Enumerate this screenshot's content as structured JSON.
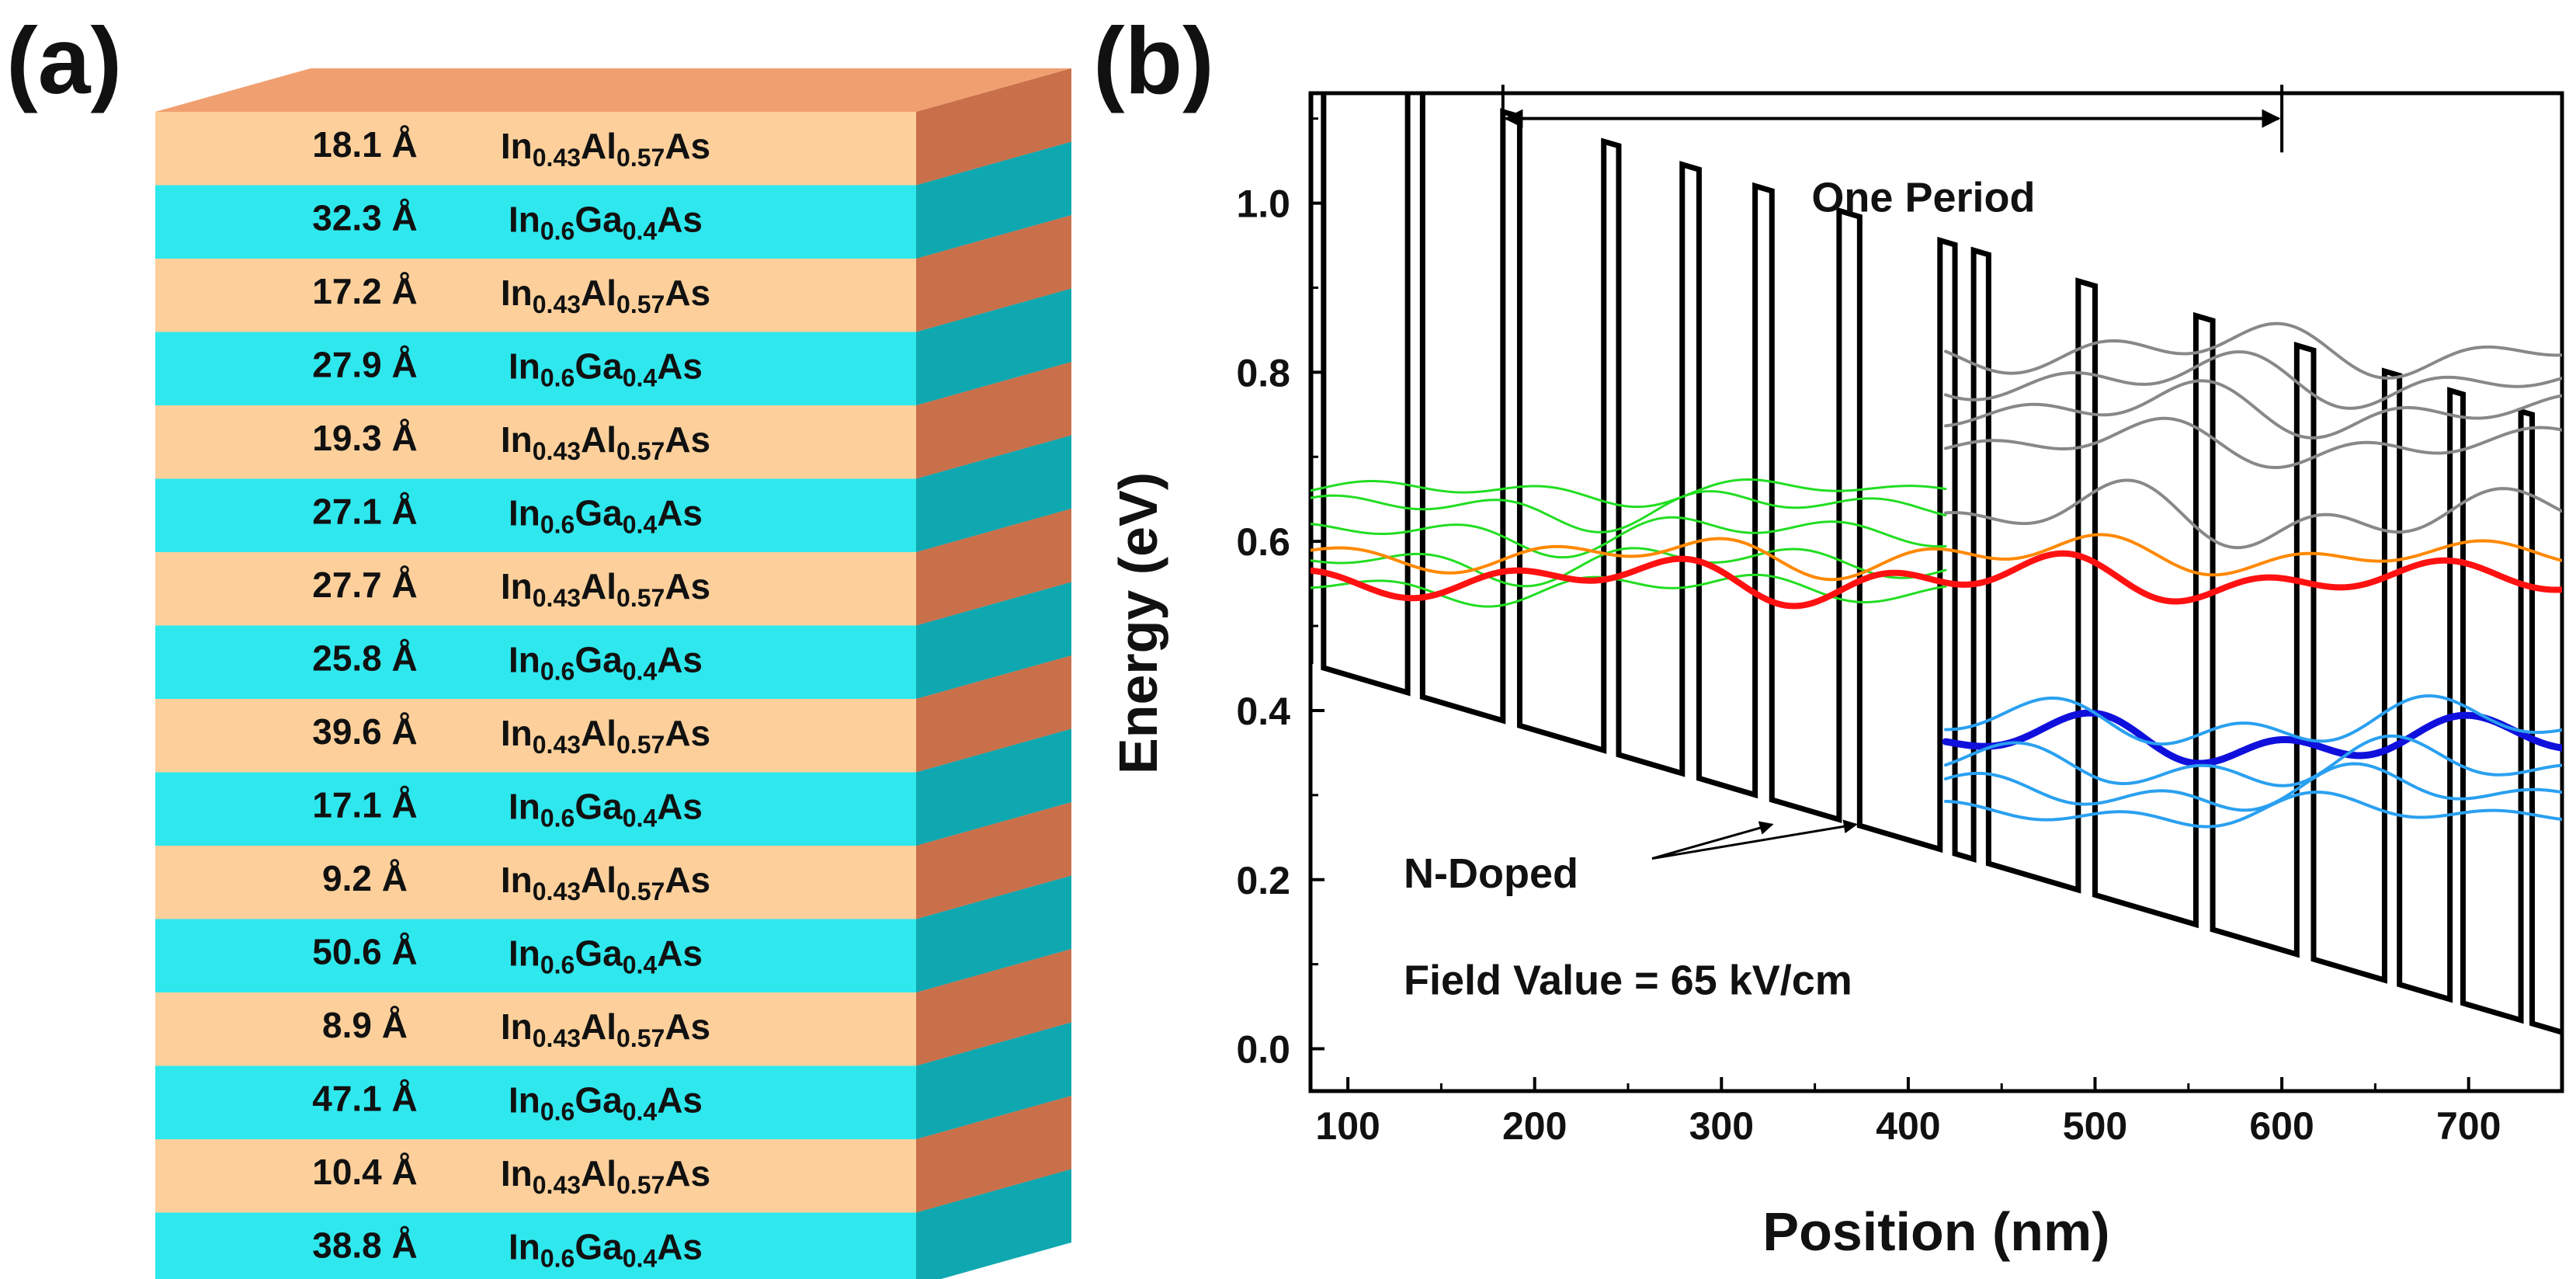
{
  "panel_a": {
    "label": "(a)",
    "layers": [
      {
        "thickness": "18.1 Å",
        "material": "InAlAs",
        "base": "In",
        "sub1": "0.43",
        "mid": "Al",
        "sub2": "0.57",
        "tail": "As"
      },
      {
        "thickness": "32.3 Å",
        "material": "InGaAs",
        "base": "In",
        "sub1": "0.6",
        "mid": "Ga",
        "sub2": "0.4",
        "tail": "As"
      },
      {
        "thickness": "17.2 Å",
        "material": "InAlAs",
        "base": "In",
        "sub1": "0.43",
        "mid": "Al",
        "sub2": "0.57",
        "tail": "As"
      },
      {
        "thickness": "27.9 Å",
        "material": "InGaAs",
        "base": "In",
        "sub1": "0.6",
        "mid": "Ga",
        "sub2": "0.4",
        "tail": "As"
      },
      {
        "thickness": "19.3 Å",
        "material": "InAlAs",
        "base": "In",
        "sub1": "0.43",
        "mid": "Al",
        "sub2": "0.57",
        "tail": "As"
      },
      {
        "thickness": "27.1 Å",
        "material": "InGaAs",
        "base": "In",
        "sub1": "0.6",
        "mid": "Ga",
        "sub2": "0.4",
        "tail": "As"
      },
      {
        "thickness": "27.7 Å",
        "material": "InAlAs",
        "base": "In",
        "sub1": "0.43",
        "mid": "Al",
        "sub2": "0.57",
        "tail": "As"
      },
      {
        "thickness": "25.8 Å",
        "material": "InGaAs",
        "base": "In",
        "sub1": "0.6",
        "mid": "Ga",
        "sub2": "0.4",
        "tail": "As"
      },
      {
        "thickness": "39.6 Å",
        "material": "InAlAs",
        "base": "In",
        "sub1": "0.43",
        "mid": "Al",
        "sub2": "0.57",
        "tail": "As"
      },
      {
        "thickness": "17.1 Å",
        "material": "InGaAs",
        "base": "In",
        "sub1": "0.6",
        "mid": "Ga",
        "sub2": "0.4",
        "tail": "As"
      },
      {
        "thickness": "9.2 Å",
        "material": "InAlAs",
        "base": "In",
        "sub1": "0.43",
        "mid": "Al",
        "sub2": "0.57",
        "tail": "As"
      },
      {
        "thickness": "50.6 Å",
        "material": "InGaAs",
        "base": "In",
        "sub1": "0.6",
        "mid": "Ga",
        "sub2": "0.4",
        "tail": "As"
      },
      {
        "thickness": "8.9 Å",
        "material": "InAlAs",
        "base": "In",
        "sub1": "0.43",
        "mid": "Al",
        "sub2": "0.57",
        "tail": "As"
      },
      {
        "thickness": "47.1 Å",
        "material": "InGaAs",
        "base": "In",
        "sub1": "0.6",
        "mid": "Ga",
        "sub2": "0.4",
        "tail": "As"
      },
      {
        "thickness": "10.4 Å",
        "material": "InAlAs",
        "base": "In",
        "sub1": "0.43",
        "mid": "Al",
        "sub2": "0.57",
        "tail": "As"
      },
      {
        "thickness": "38.8 Å",
        "material": "InGaAs",
        "base": "In",
        "sub1": "0.6",
        "mid": "Ga",
        "sub2": "0.4",
        "tail": "As"
      }
    ],
    "colors": {
      "InAlAs": {
        "front": "#fdd09b",
        "top": "#f0a070",
        "side": "#c9704a"
      },
      "InGaAs": {
        "front": "#2ee8ee",
        "top": "#26d3dc",
        "side": "#10a8b0"
      }
    }
  },
  "panel_b": {
    "label": "(b)",
    "chart_data": {
      "type": "line",
      "title": "",
      "xlabel": "Position (nm)",
      "ylabel": "Energy (eV)",
      "xlim": [
        80,
        750
      ],
      "ylim": [
        -0.05,
        1.13
      ],
      "xticks": [
        100,
        200,
        300,
        400,
        500,
        600,
        700
      ],
      "yticks": [
        0.0,
        0.2,
        0.4,
        0.6,
        0.8,
        1.0
      ],
      "ytick_labels": [
        "0.0",
        "0.2",
        "0.4",
        "0.6",
        "0.8",
        "1.0"
      ],
      "annotations": {
        "period": "One Period",
        "period_span": [
          183,
          600
        ],
        "doped": "N-Doped",
        "doped_targets": [
          [
            333,
            0.28
          ],
          [
            378,
            0.28
          ]
        ],
        "field": "Field Value = 65 kV/cm"
      },
      "conduction_band": {
        "name": "Conduction band profile",
        "color": "#000000",
        "barrier_height_eV": 0.67,
        "slope_eV_per_nm": -0.00065,
        "barriers_nm": [
          [
            80,
            87
          ],
          [
            132,
            140
          ],
          [
            183,
            192
          ],
          [
            237,
            245
          ],
          [
            279,
            288
          ],
          [
            318,
            327
          ],
          [
            363,
            374
          ],
          [
            417,
            425
          ],
          [
            435,
            443
          ],
          [
            491,
            500
          ],
          [
            554,
            563
          ],
          [
            608,
            617
          ],
          [
            655,
            663
          ],
          [
            690,
            697
          ],
          [
            728,
            734
          ]
        ]
      },
      "wavefunctions": [
        {
          "name": "green-1",
          "color": "#22dd22",
          "level": 0.66,
          "x": [
            80,
            420
          ],
          "amp": 0.02,
          "width": 3
        },
        {
          "name": "green-2",
          "color": "#22dd22",
          "level": 0.64,
          "x": [
            80,
            420
          ],
          "amp": 0.03,
          "width": 3
        },
        {
          "name": "green-3",
          "color": "#22dd22",
          "level": 0.61,
          "x": [
            80,
            420
          ],
          "amp": 0.03,
          "width": 3
        },
        {
          "name": "green-4",
          "color": "#22dd22",
          "level": 0.575,
          "x": [
            80,
            420
          ],
          "amp": 0.03,
          "width": 3
        },
        {
          "name": "green-5",
          "color": "#22dd22",
          "level": 0.545,
          "x": [
            80,
            420
          ],
          "amp": 0.025,
          "width": 3
        },
        {
          "name": "orange",
          "color": "#ff8800",
          "level": 0.583,
          "x": [
            80,
            750
          ],
          "amp": 0.03,
          "width": 4
        },
        {
          "name": "red",
          "color": "#ff1111",
          "level": 0.555,
          "x": [
            80,
            750
          ],
          "amp": 0.035,
          "width": 8
        },
        {
          "name": "grey-1",
          "color": "#888888",
          "level": 0.825,
          "x": [
            420,
            750
          ],
          "amp": 0.04,
          "width": 4
        },
        {
          "name": "grey-2",
          "color": "#888888",
          "level": 0.79,
          "x": [
            420,
            750
          ],
          "amp": 0.04,
          "width": 4
        },
        {
          "name": "grey-3",
          "color": "#888888",
          "level": 0.755,
          "x": [
            420,
            750
          ],
          "amp": 0.04,
          "width": 4
        },
        {
          "name": "grey-4",
          "color": "#888888",
          "level": 0.715,
          "x": [
            420,
            750
          ],
          "amp": 0.035,
          "width": 4
        },
        {
          "name": "grey-5",
          "color": "#888888",
          "level": 0.63,
          "x": [
            420,
            750
          ],
          "amp": 0.05,
          "width": 4
        },
        {
          "name": "blue-dark",
          "color": "#1010dd",
          "level": 0.365,
          "x": [
            420,
            750
          ],
          "amp": 0.04,
          "width": 9
        },
        {
          "name": "lightblue-1",
          "color": "#2aa0f0",
          "level": 0.385,
          "x": [
            420,
            750
          ],
          "amp": 0.04,
          "width": 4
        },
        {
          "name": "lightblue-2",
          "color": "#2aa0f0",
          "level": 0.335,
          "x": [
            420,
            750
          ],
          "amp": 0.04,
          "width": 4
        },
        {
          "name": "lightblue-3",
          "color": "#2aa0f0",
          "level": 0.305,
          "x": [
            420,
            750
          ],
          "amp": 0.035,
          "width": 4
        },
        {
          "name": "lightblue-4",
          "color": "#2aa0f0",
          "level": 0.28,
          "x": [
            420,
            750
          ],
          "amp": 0.025,
          "width": 4
        }
      ]
    }
  }
}
